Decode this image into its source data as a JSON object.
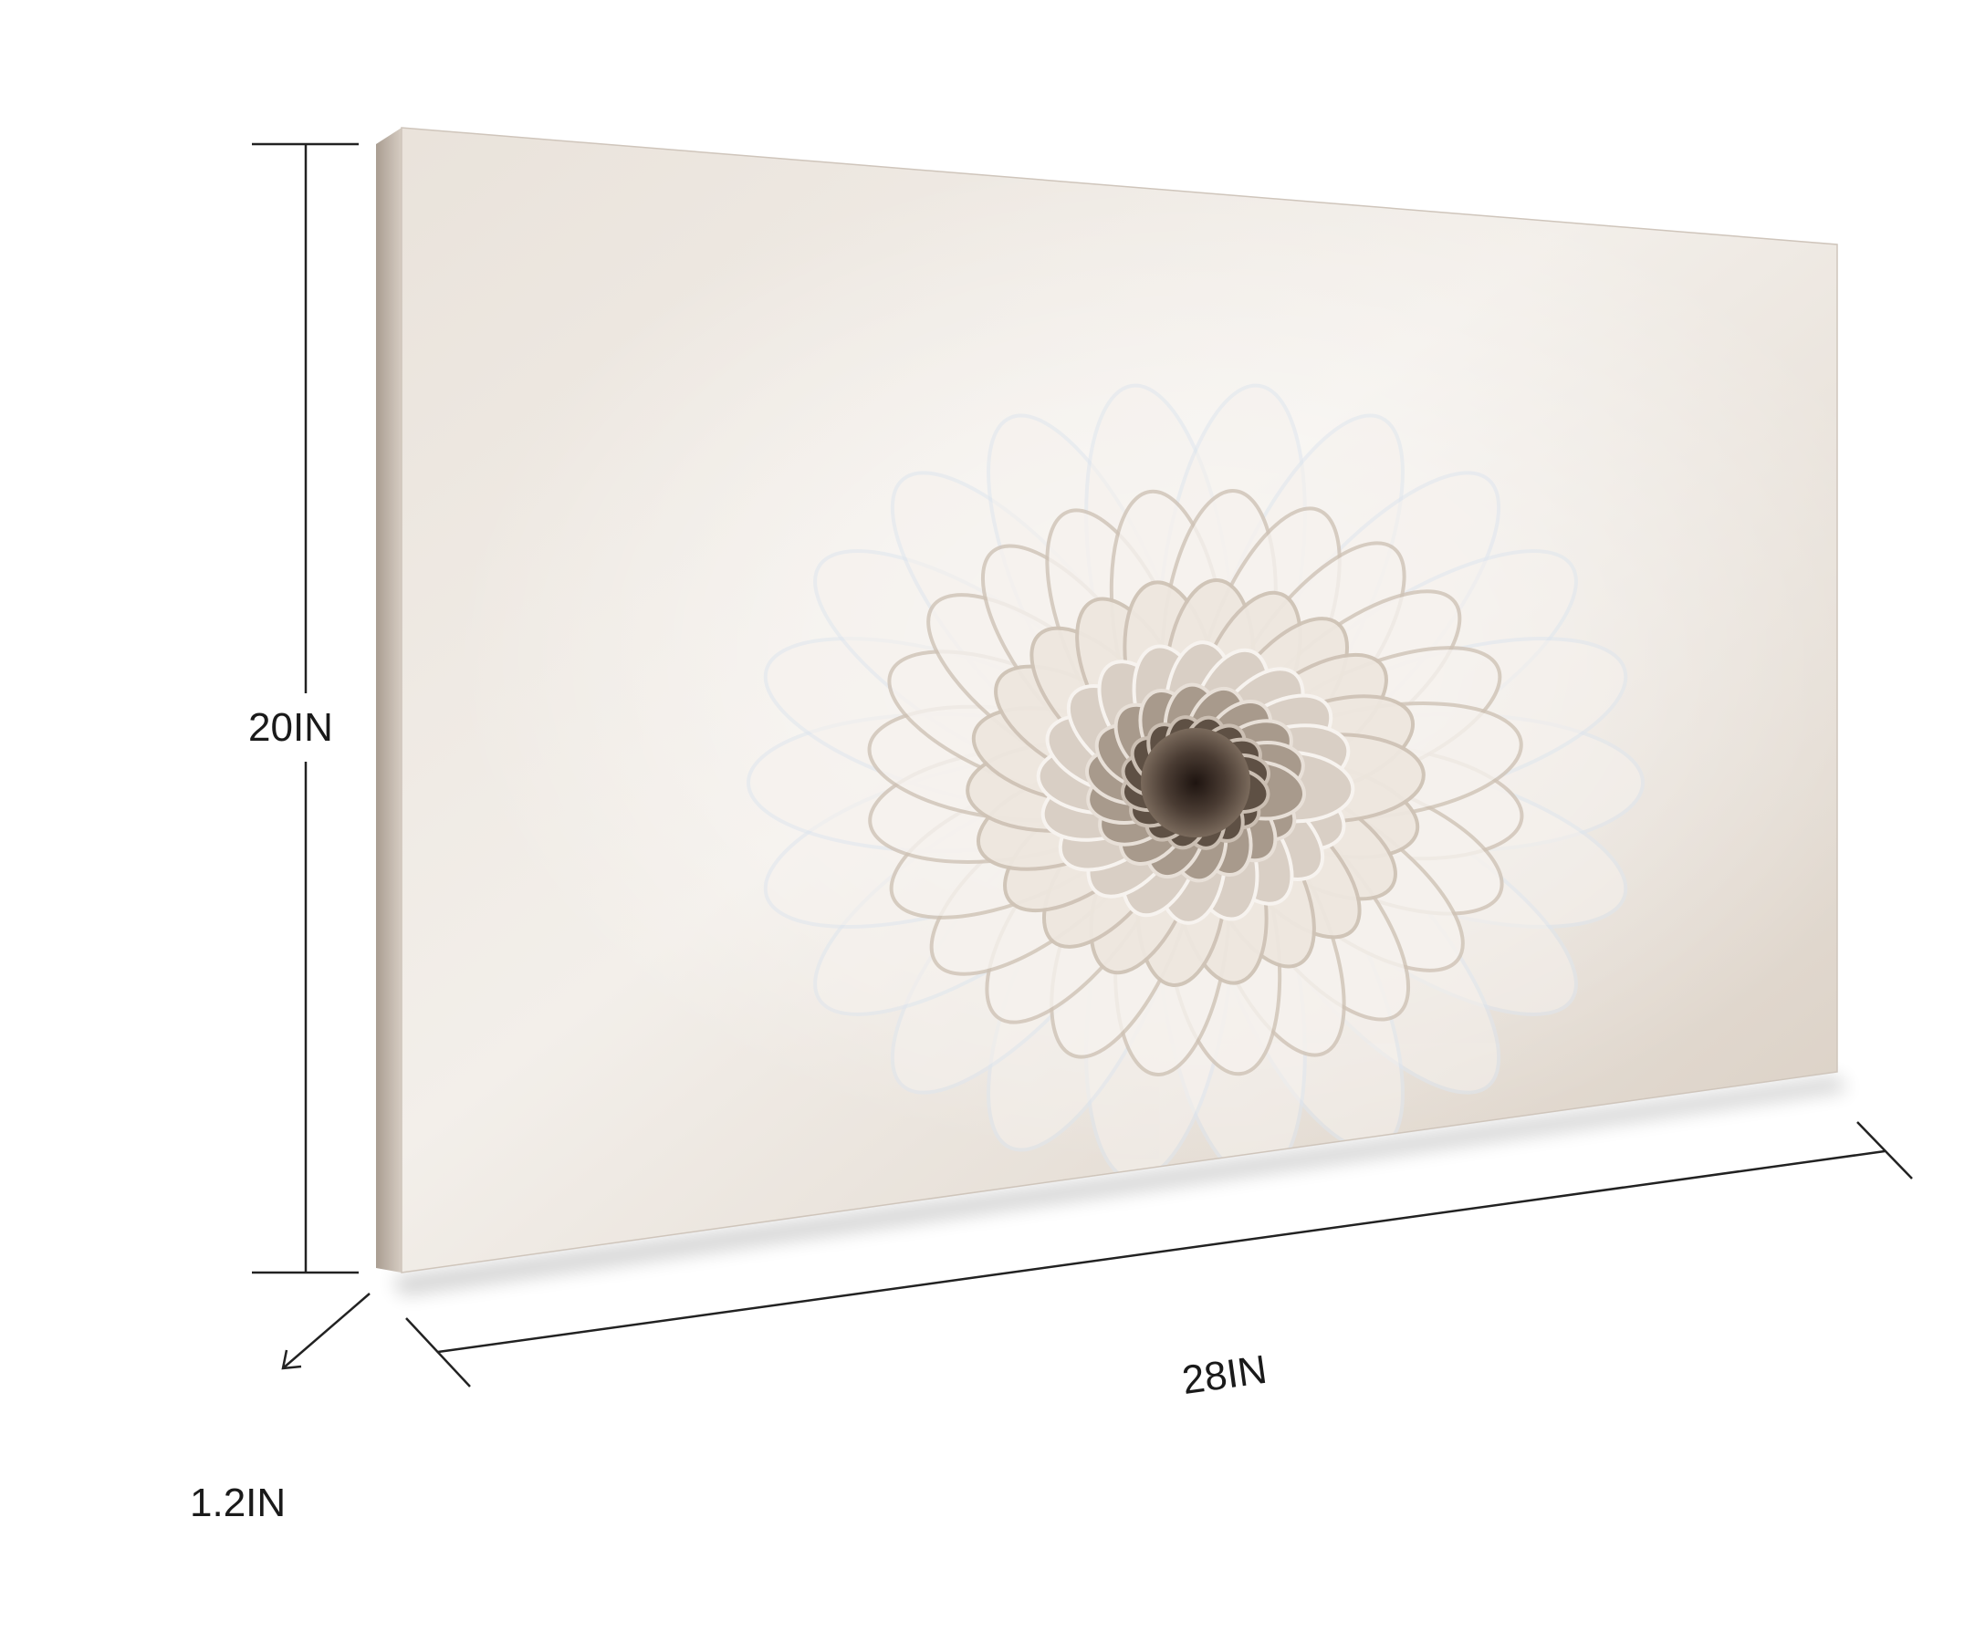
{
  "dimensions": {
    "height_label": "20IN",
    "width_label": "28IN",
    "depth_label": "1.2IN"
  },
  "artwork": {
    "colors": {
      "petal_light": "#f6f2ee",
      "petal_shadow": "#cfc3b6",
      "petal_blue": "#dfe6ee",
      "center_dark": "#5e5044",
      "center_core": "#1e1410",
      "canvas_edge": "#b9aea3"
    }
  }
}
